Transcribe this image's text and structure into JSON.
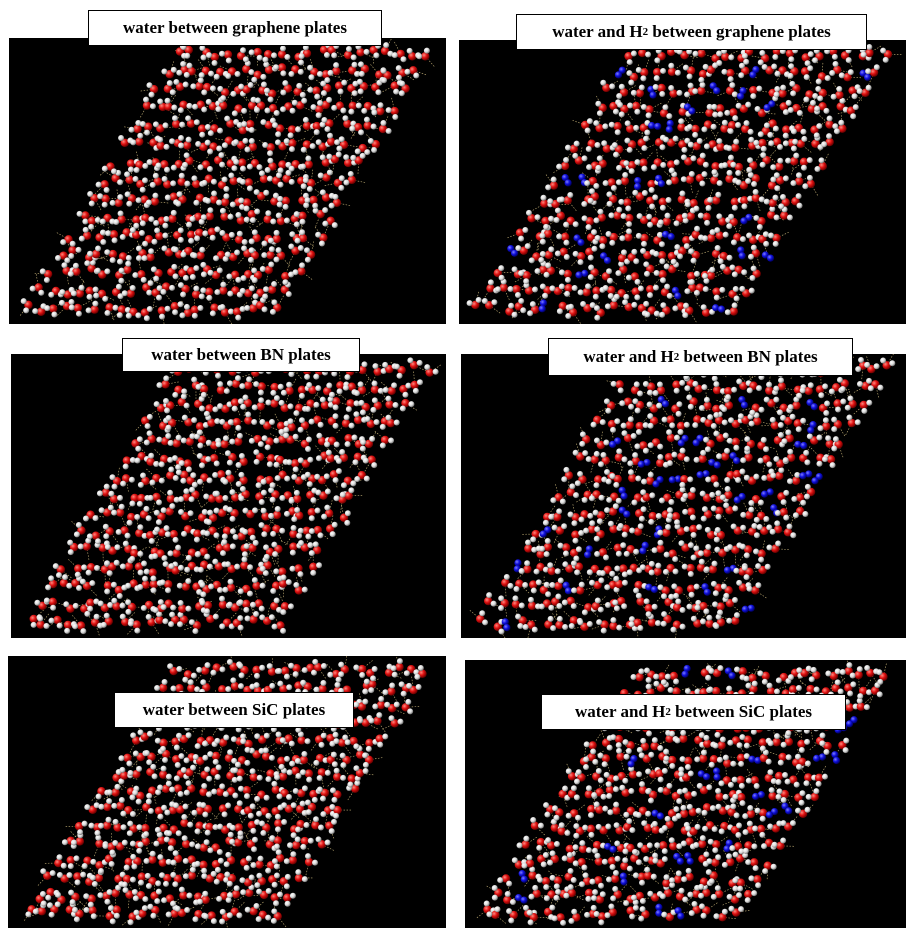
{
  "panels": [
    {
      "label": [
        "water between graphene plates"
      ]
    },
    {
      "label": [
        "water and H",
        "2",
        " between graphene plates"
      ]
    },
    {
      "label": [
        "water between BN plates"
      ]
    },
    {
      "label": [
        "water and H",
        "2",
        " between BN plates"
      ]
    },
    {
      "label": [
        "water between SiC plates"
      ]
    },
    {
      "label": [
        "water and H",
        "2",
        " between SiC plates"
      ]
    }
  ]
}
